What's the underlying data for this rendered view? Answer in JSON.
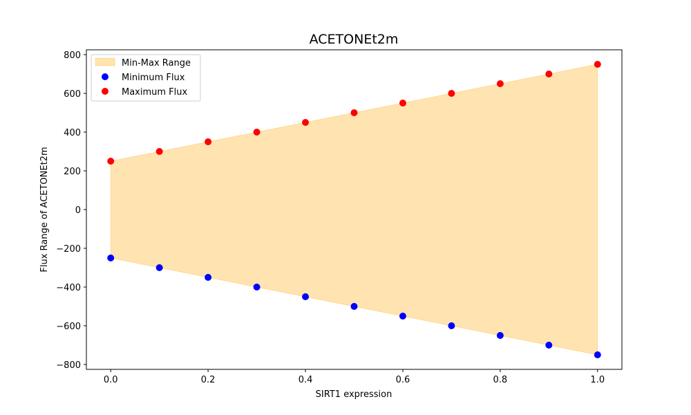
{
  "chart_data": {
    "type": "scatter",
    "title": "ACETONEt2m",
    "xlabel": "SIRT1 expression",
    "ylabel": "Flux Range of ACETONEt2m",
    "x": [
      0.0,
      0.1,
      0.2,
      0.3,
      0.4,
      0.5,
      0.6,
      0.7,
      0.8,
      0.9,
      1.0
    ],
    "series": [
      {
        "name": "Minimum Flux",
        "color": "#0000ff",
        "values": [
          -250,
          -300,
          -350,
          -400,
          -450,
          -500,
          -550,
          -600,
          -650,
          -700,
          -750
        ]
      },
      {
        "name": "Maximum Flux",
        "color": "#ff0000",
        "values": [
          250,
          300,
          350,
          400,
          450,
          500,
          550,
          600,
          650,
          700,
          750
        ]
      }
    ],
    "fill": {
      "name": "Min-Max Range",
      "color": "#ffa500",
      "alpha": 0.3
    },
    "xlim": [
      -0.05,
      1.05
    ],
    "ylim": [
      -825,
      825
    ],
    "xticks": [
      0.0,
      0.2,
      0.4,
      0.6,
      0.8,
      1.0
    ],
    "xtick_labels": [
      "0.0",
      "0.2",
      "0.4",
      "0.6",
      "0.8",
      "1.0"
    ],
    "yticks": [
      -800,
      -600,
      -400,
      -200,
      0,
      200,
      400,
      600,
      800
    ],
    "ytick_labels": [
      "−800",
      "−600",
      "−400",
      "−200",
      "0",
      "200",
      "400",
      "600",
      "800"
    ],
    "grid": false,
    "legend_position": "top-left"
  }
}
